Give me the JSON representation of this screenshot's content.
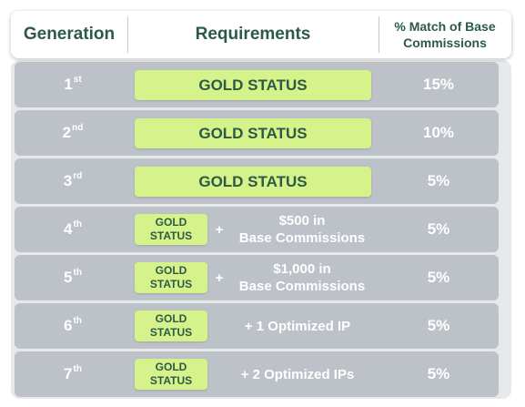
{
  "header": {
    "generation": "Generation",
    "requirements": "Requirements",
    "match_line1": "% Match of Base",
    "match_line2": "Commissions"
  },
  "rows": [
    {
      "gen_num": "1",
      "gen_suffix": "st",
      "req": "GOLD STATUS",
      "pct": "15%"
    },
    {
      "gen_num": "2",
      "gen_suffix": "nd",
      "req": "GOLD STATUS",
      "pct": "10%"
    },
    {
      "gen_num": "3",
      "gen_suffix": "rd",
      "req": "GOLD STATUS",
      "pct": "5%"
    },
    {
      "gen_num": "4",
      "gen_suffix": "th",
      "gold_line1": "GOLD",
      "gold_line2": "STATUS",
      "plus": "+",
      "extra_line1": "$500 in",
      "extra_line2": "Base Commissions",
      "pct": "5%"
    },
    {
      "gen_num": "5",
      "gen_suffix": "th",
      "gold_line1": "GOLD",
      "gold_line2": "STATUS",
      "plus": "+",
      "extra_line1": "$1,000 in",
      "extra_line2": "Base Commissions",
      "pct": "5%"
    },
    {
      "gen_num": "6",
      "gen_suffix": "th",
      "gold_line1": "GOLD",
      "gold_line2": "STATUS",
      "extra": "+ 1 Optimized IP",
      "pct": "5%"
    },
    {
      "gen_num": "7",
      "gen_suffix": "th",
      "gold_line1": "GOLD",
      "gold_line2": "STATUS",
      "extra": "+ 2 Optimized IPs",
      "pct": "5%"
    }
  ],
  "colors": {
    "header_text": "#2d5a47",
    "row_bg": "#bcc2c7",
    "panel_bg": "#e6e8e9",
    "gold_badge": "#d6f28a"
  }
}
